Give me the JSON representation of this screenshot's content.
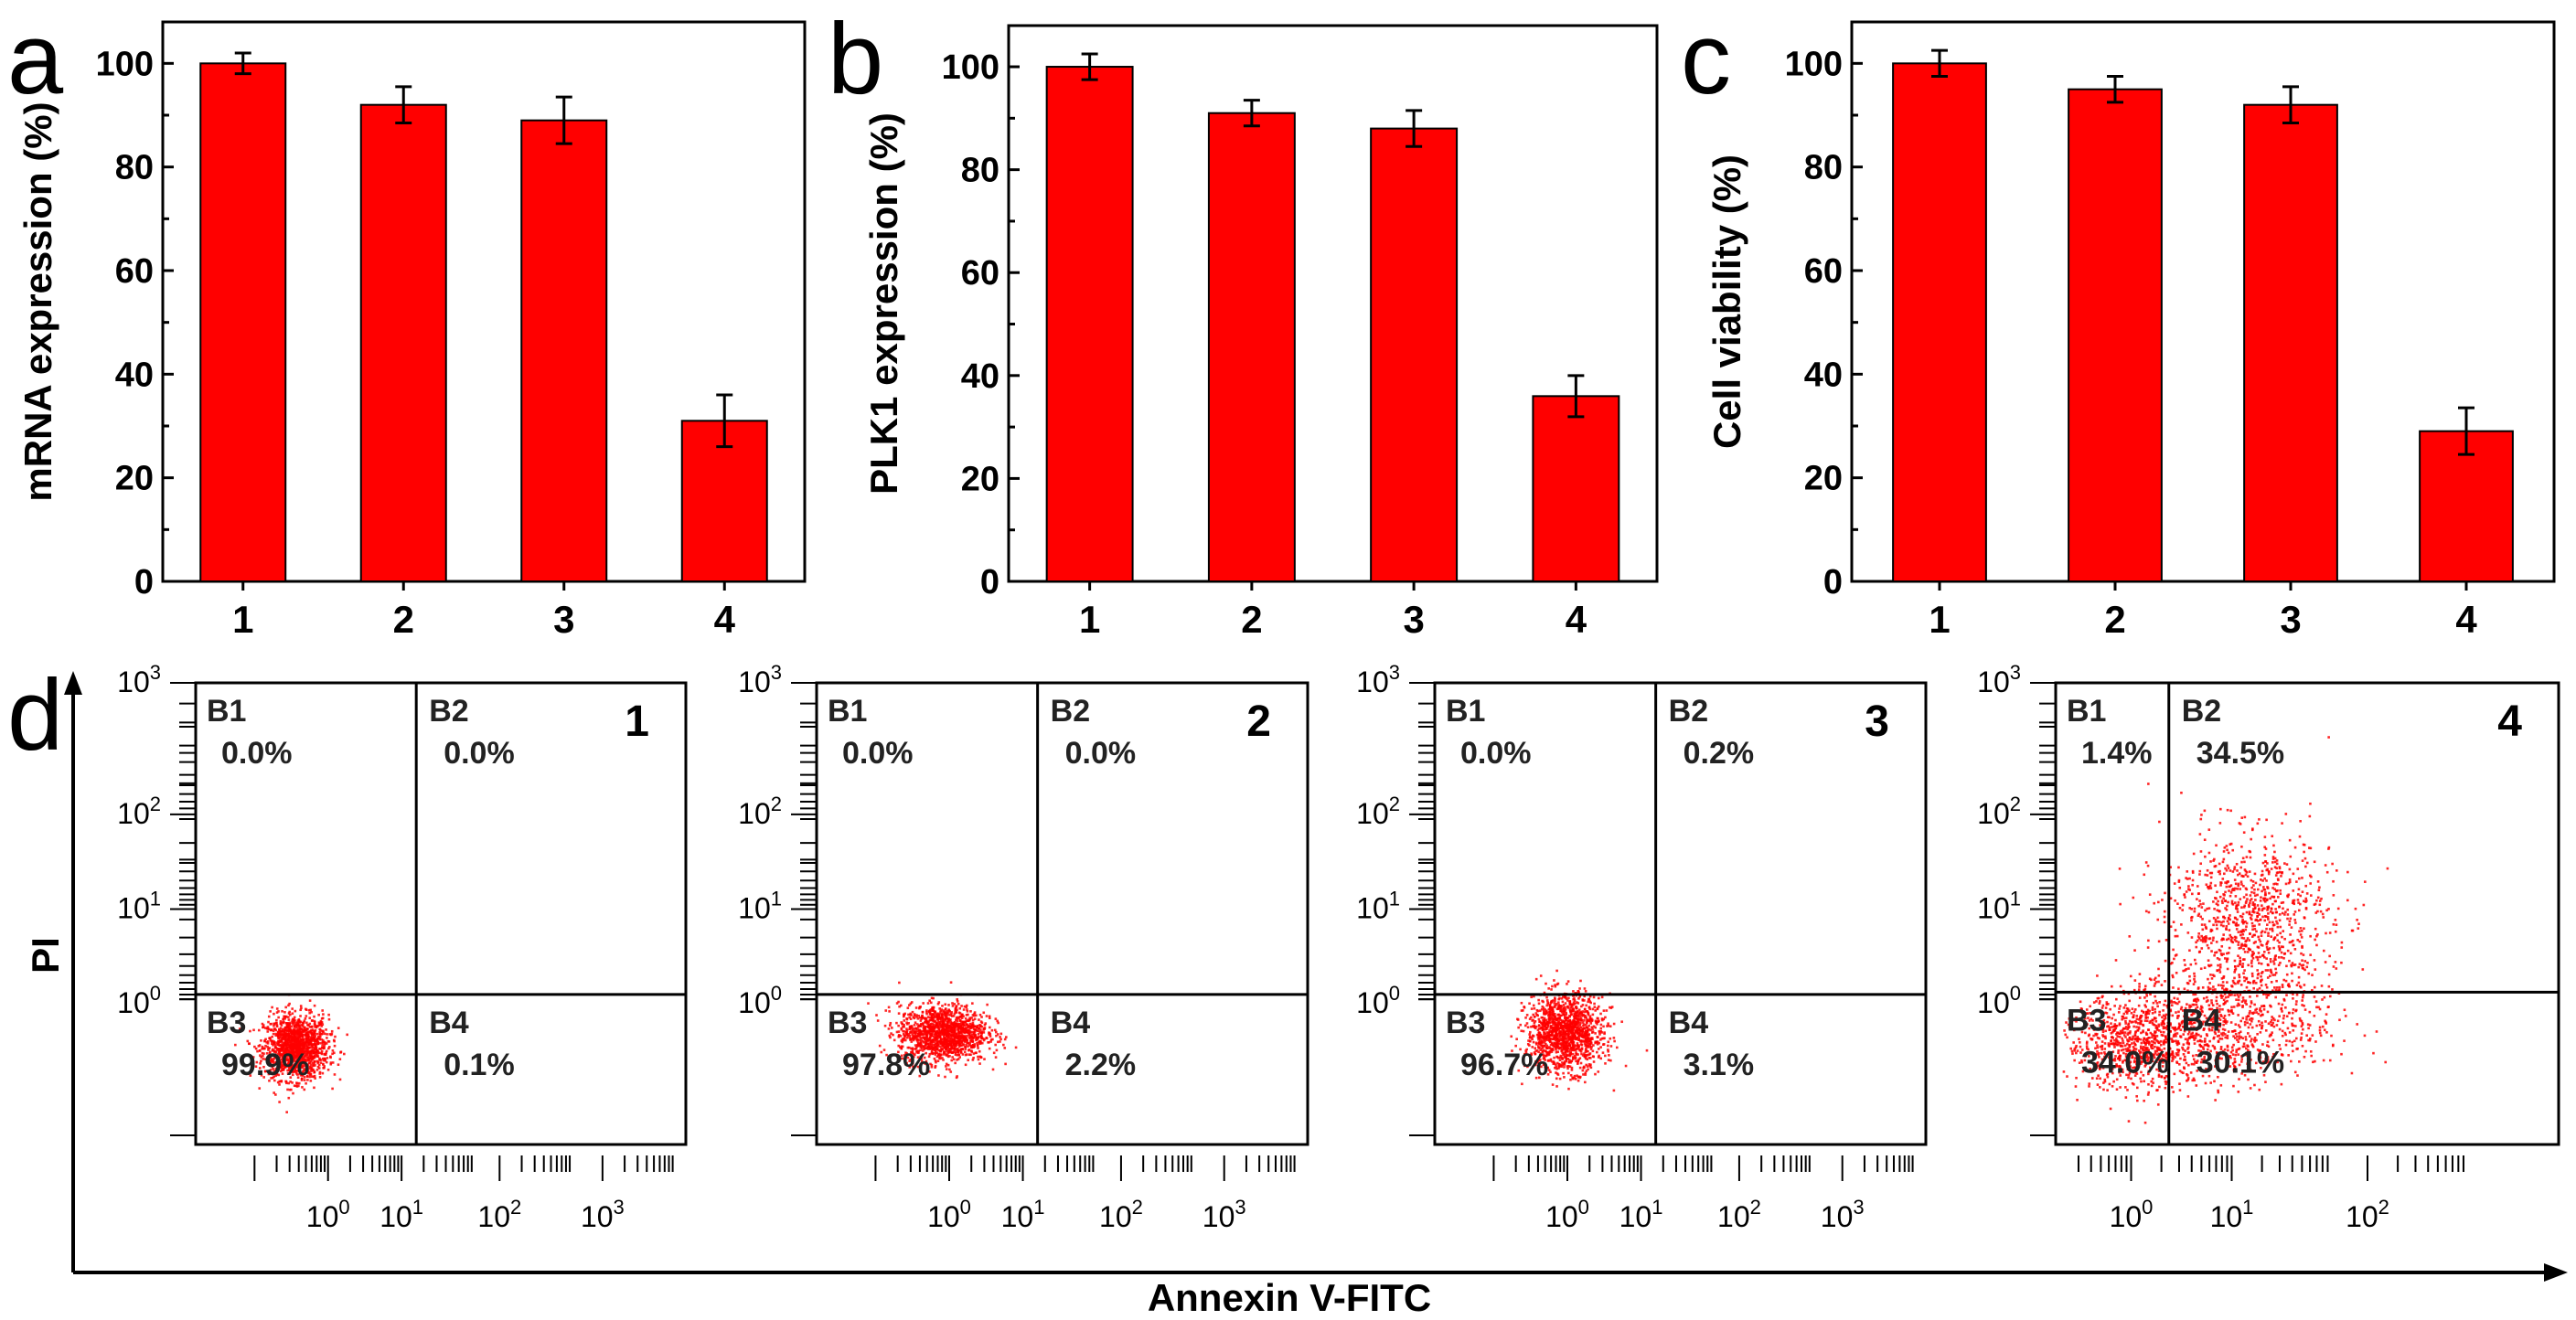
{
  "panel_letters": [
    "a",
    "b",
    "c",
    "d"
  ],
  "chart_data": [
    {
      "type": "bar",
      "panel": "a",
      "categories": [
        "1",
        "2",
        "3",
        "4"
      ],
      "values": [
        100,
        92,
        89,
        31
      ],
      "errors": [
        2,
        3.5,
        4.5,
        5
      ],
      "ylabel": "mRNA expression (%)",
      "xlabel": "",
      "ylim": [
        0,
        108
      ],
      "yticks": [
        0,
        20,
        40,
        60,
        80,
        100
      ],
      "color": "#ff0000"
    },
    {
      "type": "bar",
      "panel": "b",
      "categories": [
        "1",
        "2",
        "3",
        "4"
      ],
      "values": [
        100,
        91,
        88,
        36
      ],
      "errors": [
        2.5,
        2.5,
        3.5,
        4
      ],
      "ylabel": "PLK1 expression (%)",
      "xlabel": "",
      "ylim": [
        0,
        108
      ],
      "yticks": [
        0,
        20,
        40,
        60,
        80,
        100
      ],
      "color": "#ff0000"
    },
    {
      "type": "bar",
      "panel": "c",
      "categories": [
        "1",
        "2",
        "3",
        "4"
      ],
      "values": [
        100,
        95,
        92,
        29
      ],
      "errors": [
        2.5,
        2.5,
        3.5,
        4.5
      ],
      "ylabel": "Cell viability (%)",
      "xlabel": "",
      "ylim": [
        0,
        108
      ],
      "yticks": [
        0,
        20,
        40,
        60,
        80,
        100
      ],
      "color": "#ff0000"
    },
    {
      "type": "scatter",
      "panel": "d",
      "xlabel": "Annexin V-FITC",
      "ylabel": "PI",
      "xscale": "log",
      "yscale": "log",
      "axis_exponents": [
        "0",
        "1",
        "2",
        "3"
      ],
      "plots": [
        {
          "sample": "1",
          "x_ticks": [
            "0",
            "1",
            "2",
            "3"
          ],
          "quadrants": [
            {
              "name": "B1",
              "value": "0.0%"
            },
            {
              "name": "B2",
              "value": "0.0%"
            },
            {
              "name": "B3",
              "value": "99.9%"
            },
            {
              "name": "B4",
              "value": "0.1%"
            }
          ],
          "clusters": [
            {
              "cx": -0.45,
              "cy": -0.45,
              "sx": 0.22,
              "sy": 0.17,
              "n": 1400
            }
          ]
        },
        {
          "sample": "2",
          "x_ticks": [
            "0",
            "1",
            "2",
            "3"
          ],
          "quadrants": [
            {
              "name": "B1",
              "value": "0.0%"
            },
            {
              "name": "B2",
              "value": "0.0%"
            },
            {
              "name": "B3",
              "value": "97.8%"
            },
            {
              "name": "B4",
              "value": "2.2%"
            }
          ],
          "clusters": [
            {
              "cx": -0.1,
              "cy": -0.3,
              "sx": 0.3,
              "sy": 0.15,
              "n": 1400
            }
          ]
        },
        {
          "sample": "3",
          "x_ticks": [
            "0",
            "1",
            "2",
            "3"
          ],
          "quadrants": [
            {
              "name": "B1",
              "value": "0.0%"
            },
            {
              "name": "B2",
              "value": "0.2%"
            },
            {
              "name": "B3",
              "value": "96.7%"
            },
            {
              "name": "B4",
              "value": "3.1%"
            }
          ],
          "clusters": [
            {
              "cx": -0.05,
              "cy": -0.3,
              "sx": 0.26,
              "sy": 0.2,
              "n": 1400
            }
          ]
        },
        {
          "sample": "4",
          "x_ticks": [
            "0",
            "1",
            "2"
          ],
          "quadrants": [
            {
              "name": "B1",
              "value": "1.4%"
            },
            {
              "name": "B2",
              "value": "34.5%"
            },
            {
              "name": "B3",
              "value": "34.0%"
            },
            {
              "name": "B4",
              "value": "30.1%"
            }
          ],
          "clusters": [
            {
              "cx": 0.1,
              "cy": -0.4,
              "sx": 0.4,
              "sy": 0.25,
              "n": 900
            },
            {
              "cx": 1.15,
              "cy": 0.9,
              "sx": 0.42,
              "sy": 0.45,
              "n": 1000
            },
            {
              "cx": 1.0,
              "cy": -0.2,
              "sx": 0.5,
              "sy": 0.3,
              "n": 700
            }
          ]
        }
      ]
    }
  ]
}
